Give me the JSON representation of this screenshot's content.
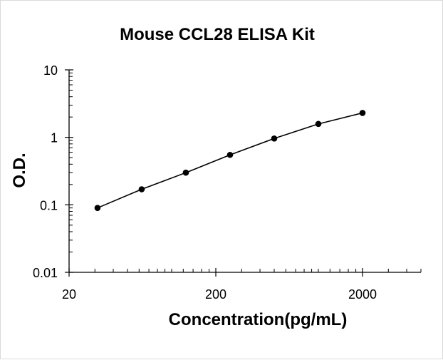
{
  "chart_data": {
    "type": "line",
    "title": "Mouse CCL28 ELISA Kit",
    "xlabel": "Concentration(pg/mL)",
    "ylabel": "O.D.",
    "x_scale": "log",
    "y_scale": "log",
    "xlim": [
      20,
      5000
    ],
    "ylim": [
      0.01,
      10
    ],
    "x_ticks": [
      "20",
      "200",
      "2000"
    ],
    "y_ticks": [
      "10",
      "1",
      "0.1",
      "0.01"
    ],
    "grid": false,
    "legend": "none",
    "series": [
      {
        "x": [
          31.25,
          62.5,
          125,
          250,
          500,
          1000,
          2000
        ],
        "y": [
          0.09,
          0.17,
          0.3,
          0.55,
          0.96,
          1.58,
          2.3
        ]
      }
    ],
    "colors": {
      "line": "#000000",
      "marker": "#000000",
      "axis": "#000000"
    }
  }
}
